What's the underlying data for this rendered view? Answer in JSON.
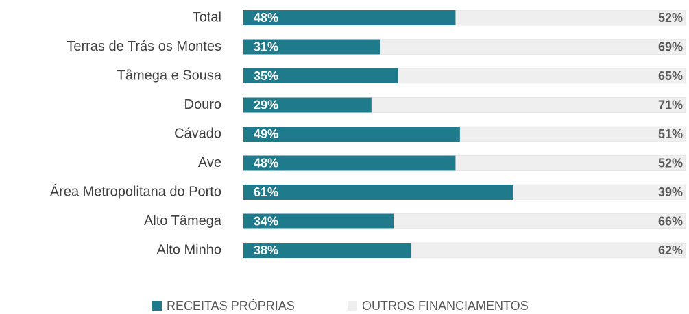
{
  "chart_data": {
    "type": "stacked_bar_horizontal",
    "categories": [
      "Total",
      "Terras de Trás os Montes",
      "Tâmega e Sousa",
      "Douro",
      "Cávado",
      "Ave",
      "Área Metropolitana do Porto",
      "Alto Tâmega",
      "Alto Minho"
    ],
    "series": [
      {
        "name": "RECEITAS PRÓPRIAS",
        "color": "#1f7a8c",
        "values": [
          48,
          31,
          35,
          29,
          49,
          48,
          61,
          34,
          38
        ],
        "value_labels": [
          "48%",
          "31%",
          "35%",
          "29%",
          "49%",
          "48%",
          "61%",
          "34%",
          "38%"
        ]
      },
      {
        "name": "OUTROS FINANCIAMENTOS",
        "color": "#efefef",
        "values": [
          52,
          69,
          65,
          71,
          51,
          52,
          39,
          66,
          62
        ],
        "value_labels": [
          "52%",
          "69%",
          "65%",
          "71%",
          "51%",
          "52%",
          "39%",
          "66%",
          "62%"
        ]
      }
    ],
    "legend": "bottom"
  }
}
